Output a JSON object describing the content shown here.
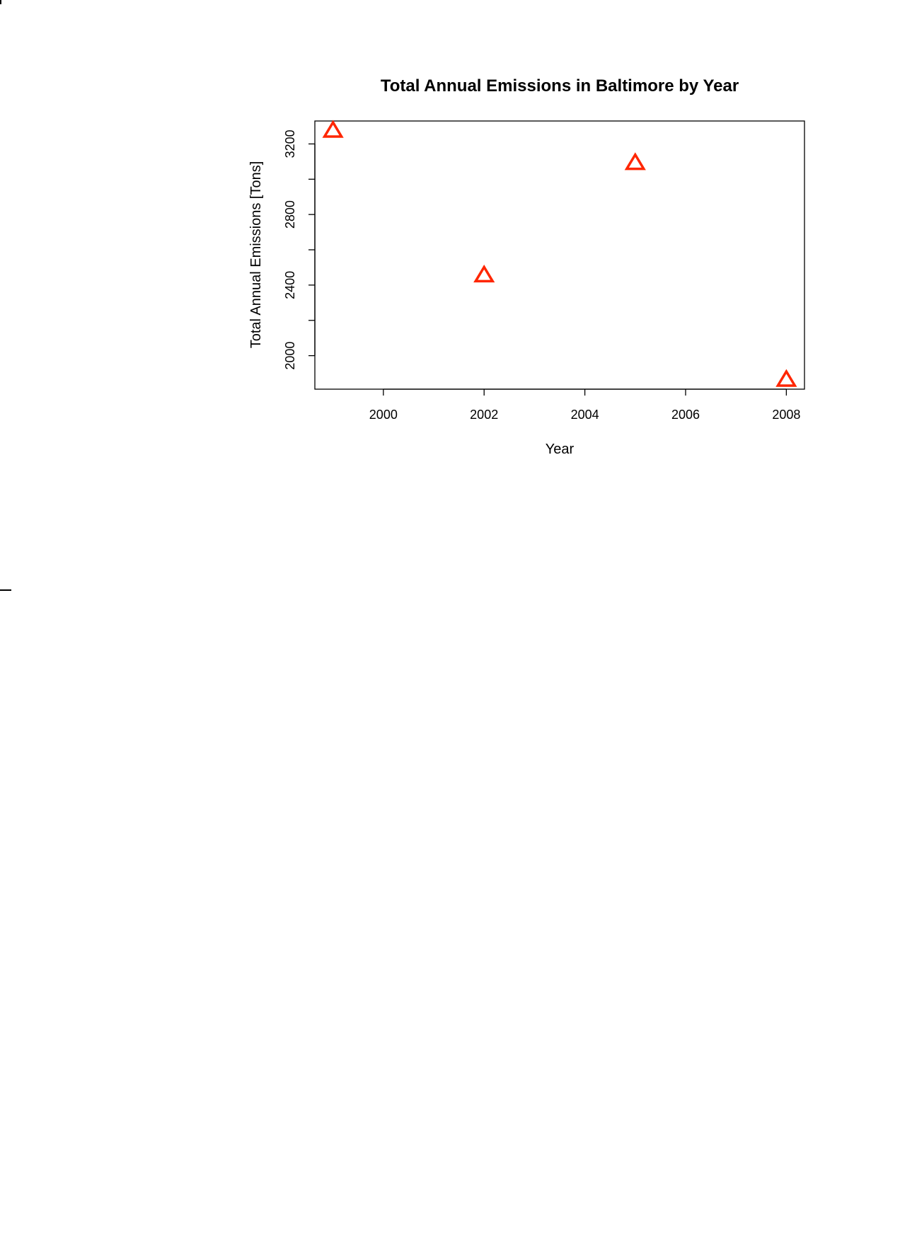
{
  "chart_data": {
    "type": "scatter",
    "title": "Total Annual Emissions in Baltimore by Year",
    "xlabel": "Year",
    "ylabel": "Total Annual Emissions [Tons]",
    "xlim": [
      1998.64,
      2008.36
    ],
    "ylim": [
      1810,
      3330
    ],
    "x_ticks": [
      2000,
      2002,
      2004,
      2006,
      2008
    ],
    "y_ticks": [
      2000,
      2400,
      2800,
      3200
    ],
    "y_minor_ticks": [
      2200,
      2600,
      3000
    ],
    "x_tick_labels": [
      "2000",
      "2002",
      "2004",
      "2006",
      "2008"
    ],
    "y_tick_labels": [
      "2000",
      "2400",
      "2800",
      "3200"
    ],
    "marker": "open-triangle",
    "marker_color": "#ff2600",
    "grid": false,
    "series": [
      {
        "x": [
          1999,
          2002,
          2005,
          2008
        ],
        "y": [
          3274,
          2454,
          3091,
          1862
        ]
      }
    ]
  }
}
